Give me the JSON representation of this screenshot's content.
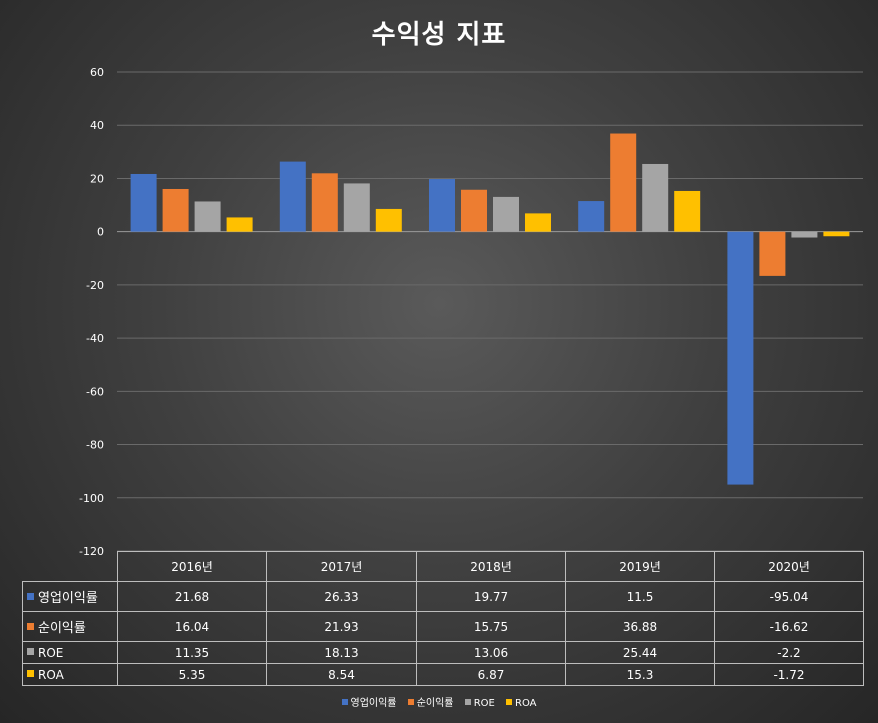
{
  "chart_data": {
    "type": "bar",
    "title": "수익성 지표",
    "categories": [
      "2016년",
      "2017년",
      "2018년",
      "2019년",
      "2020년"
    ],
    "series": [
      {
        "name": "영업이익률",
        "color": "#4472c4",
        "values": [
          21.68,
          26.33,
          19.77,
          11.5,
          -95.04
        ]
      },
      {
        "name": "순이익률",
        "color": "#ed7d31",
        "values": [
          16.04,
          21.93,
          15.75,
          36.88,
          -16.62
        ]
      },
      {
        "name": "ROE",
        "color": "#a5a5a5",
        "values": [
          11.35,
          18.13,
          13.06,
          25.44,
          -2.2
        ]
      },
      {
        "name": "ROA",
        "color": "#ffc000",
        "values": [
          5.35,
          8.54,
          6.87,
          15.3,
          -1.72
        ]
      }
    ],
    "ylim": [
      -120,
      60
    ],
    "yticks": [
      60,
      40,
      20,
      0,
      -20,
      -40,
      -60,
      -80,
      -100,
      -120
    ],
    "grid": true,
    "data_table": true,
    "legend": "bottom-center"
  }
}
